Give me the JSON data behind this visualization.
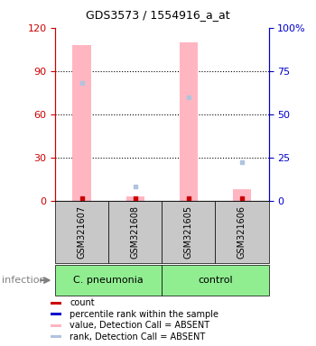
{
  "title": "GDS3573 / 1554916_a_at",
  "samples": [
    "GSM321607",
    "GSM321608",
    "GSM321605",
    "GSM321606"
  ],
  "group_labels": [
    "C. pneumonia",
    "control"
  ],
  "group_sample_counts": [
    2,
    2
  ],
  "pink_bar_values": [
    108,
    3,
    110,
    8
  ],
  "blue_absent_dot_values_pct": [
    68,
    8,
    60,
    22
  ],
  "red_dot_values": [
    2,
    2,
    2,
    2
  ],
  "ylim_left": [
    0,
    120
  ],
  "ylim_right": [
    0,
    100
  ],
  "yticks_left": [
    0,
    30,
    60,
    90,
    120
  ],
  "ytick_labels_left": [
    "0",
    "30",
    "60",
    "90",
    "120"
  ],
  "yticks_right_pct": [
    0,
    25,
    50,
    75,
    100
  ],
  "ytick_labels_right": [
    "0",
    "25",
    "50",
    "75",
    "100%"
  ],
  "left_axis_color": "#CC0000",
  "right_axis_color": "#0000CC",
  "bar_color": "#FFB6C1",
  "dot_color_blue_solid": "#0000CC",
  "dot_color_red": "#CC0000",
  "dot_color_blue_absent": "#B0C4DE",
  "sample_bg_color": "#C8C8C8",
  "group_color_cp": "#90EE90",
  "group_color_ctrl": "#90EE90",
  "infection_label": "infection",
  "legend_labels": [
    "count",
    "percentile rank within the sample",
    "value, Detection Call = ABSENT",
    "rank, Detection Call = ABSENT"
  ],
  "legend_colors": [
    "#CC0000",
    "#0000CC",
    "#FFB6C1",
    "#B0C4DE"
  ]
}
